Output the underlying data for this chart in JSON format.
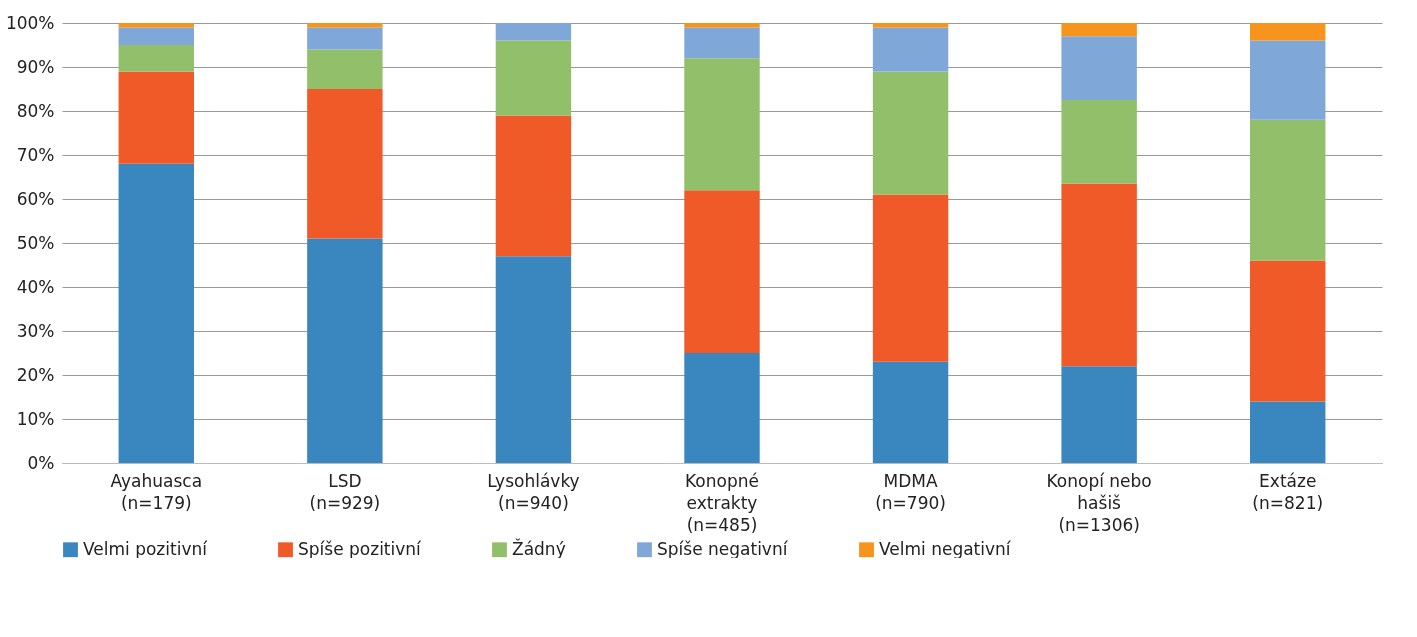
{
  "chart_data": {
    "type": "bar",
    "stacked": true,
    "categories": [
      "Ayahuasca\n(n=179)",
      "LSD\n(n=929)",
      "Lysohlávky\n(n=940)",
      "Konopné\nextrakty\n(n=485)",
      "MDMA\n(n=790)",
      "Konopí nebo\nhašiš\n(n=1306)",
      "Extáze\n(n=821)"
    ],
    "series": [
      {
        "name": "Velmi pozitivní",
        "color": "#3a87c0",
        "values": [
          68,
          51,
          47,
          25,
          23,
          22,
          14
        ]
      },
      {
        "name": "Spíše pozitivní",
        "color": "#f05a28",
        "values": [
          21,
          34,
          32,
          37,
          38,
          41.5,
          32
        ]
      },
      {
        "name": "Žádný",
        "color": "#92bf6a",
        "values": [
          6,
          9,
          17,
          30,
          28,
          19,
          32
        ]
      },
      {
        "name": "Spíše negativní",
        "color": "#7fa8d8",
        "values": [
          4,
          5,
          4,
          7,
          10,
          14.5,
          18
        ]
      },
      {
        "name": "Velmi negativní",
        "color": "#f7941d",
        "values": [
          1,
          1,
          0,
          1,
          1,
          3,
          4
        ]
      }
    ],
    "ylim": [
      0,
      100
    ],
    "yticks": [
      {
        "value": 0,
        "label": "0%"
      },
      {
        "value": 10,
        "label": "10%"
      },
      {
        "value": 20,
        "label": "20%"
      },
      {
        "value": 30,
        "label": "30%"
      },
      {
        "value": 40,
        "label": "40%"
      },
      {
        "value": 50,
        "label": "50%"
      },
      {
        "value": 60,
        "label": "60%"
      },
      {
        "value": 70,
        "label": "70%"
      },
      {
        "value": 80,
        "label": "80%"
      },
      {
        "value": 90,
        "label": "90%"
      },
      {
        "value": 100,
        "label": "100%"
      }
    ],
    "grid": "y",
    "legend": "bottom"
  }
}
